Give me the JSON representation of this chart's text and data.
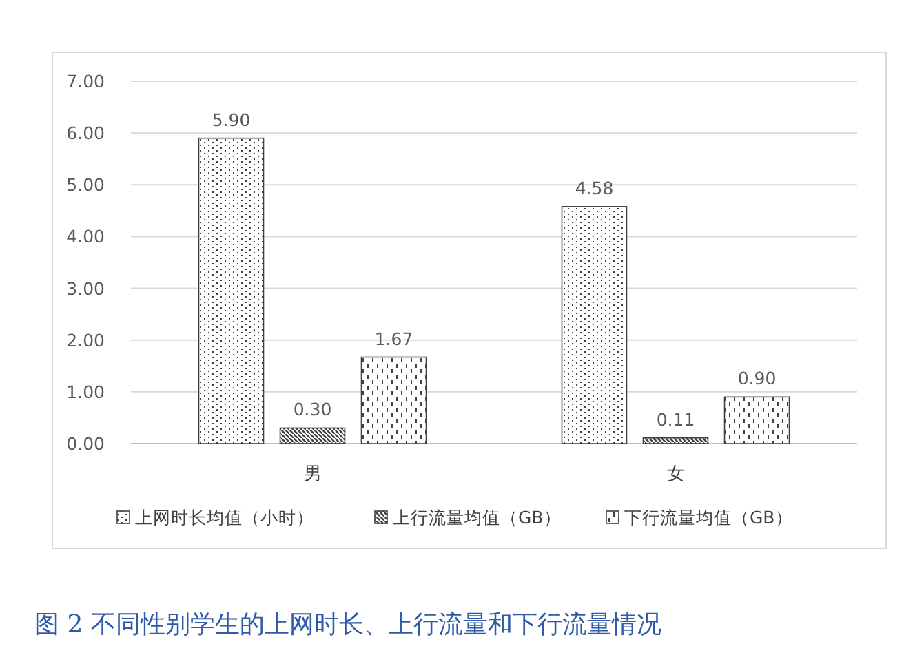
{
  "chart_data": {
    "type": "bar",
    "title": "图 2 不同性别学生的上网时长、上行流量和下行流量情况",
    "categories": [
      "男",
      "女"
    ],
    "series": [
      {
        "name": "上网时长均值（小时）",
        "color": "#404040",
        "values": [
          5.9,
          4.58
        ],
        "value_labels": [
          "5.90",
          "4.58"
        ]
      },
      {
        "name": "上行流量均值（GB）",
        "color": "#404040",
        "values": [
          0.3,
          0.11
        ],
        "value_labels": [
          "0.30",
          "0.11"
        ]
      },
      {
        "name": "下行流量均值（GB）",
        "color": "#404040",
        "values": [
          1.67,
          0.9
        ],
        "value_labels": [
          "1.67",
          "0.90"
        ]
      }
    ],
    "ylim": [
      0,
      7
    ],
    "yticks": [
      {
        "value": 0,
        "label": "0.00"
      },
      {
        "value": 1,
        "label": "1.00"
      },
      {
        "value": 2,
        "label": "2.00"
      },
      {
        "value": 3,
        "label": "3.00"
      },
      {
        "value": 4,
        "label": "4.00"
      },
      {
        "value": 5,
        "label": "5.00"
      },
      {
        "value": 6,
        "label": "6.00"
      },
      {
        "value": 7,
        "label": "7.00"
      }
    ],
    "grid": "y",
    "legend": "bottom"
  }
}
